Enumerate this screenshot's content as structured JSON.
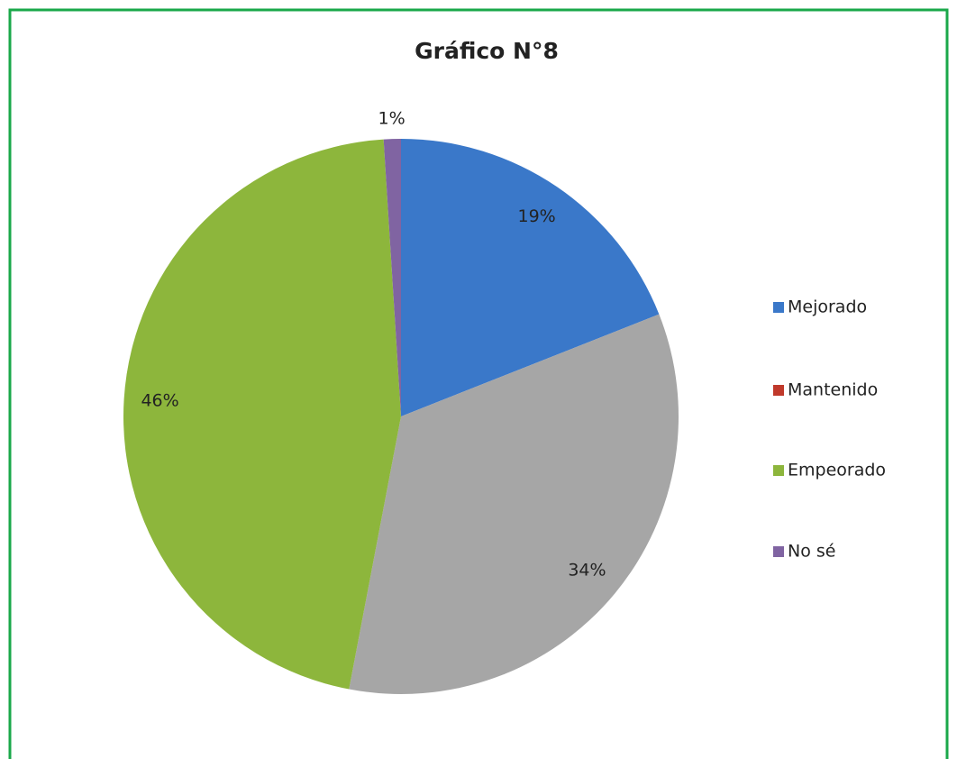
{
  "chart_data": {
    "type": "pie",
    "title": "Gráfico N°8",
    "categories": [
      "Mejorado",
      "Mantenido",
      "Empeorado",
      "No sé"
    ],
    "values": [
      19,
      34,
      46,
      1
    ],
    "value_labels": [
      "19%",
      "34%",
      "46%",
      "1%"
    ],
    "colors": [
      "#3a78c9",
      "#a6a6a6",
      "#8db63c",
      "#8064a2"
    ],
    "legend_colors": [
      "#3a78c9",
      "#c0392b",
      "#8db63c",
      "#8064a2"
    ],
    "legend": "right"
  }
}
